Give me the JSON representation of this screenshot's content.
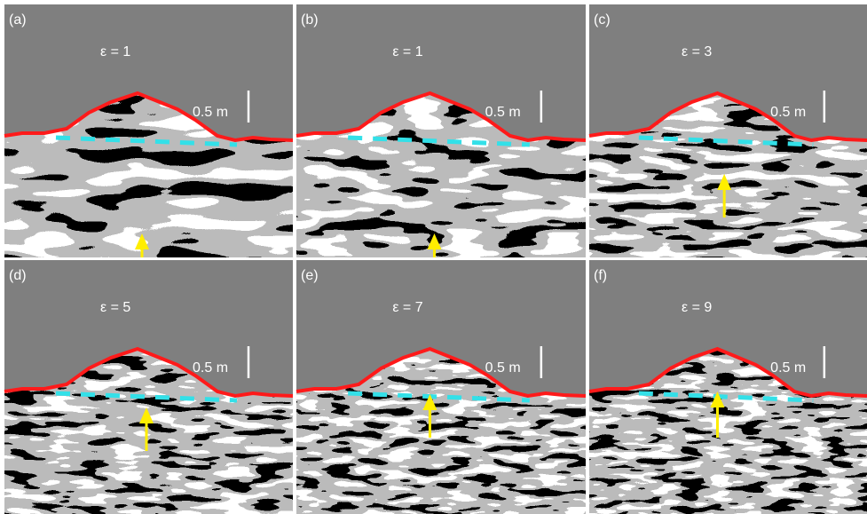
{
  "panels": [
    {
      "label": "(a)",
      "epsilon": "ε = 1",
      "scale": "0.5 m"
    },
    {
      "label": "(b)",
      "epsilon": "ε = 1",
      "scale": "0.5 m"
    },
    {
      "label": "(c)",
      "epsilon": "ε = 3",
      "scale": "0.5 m"
    },
    {
      "label": "(d)",
      "epsilon": "ε = 5",
      "scale": "0.5 m"
    },
    {
      "label": "(e)",
      "epsilon": "ε = 7",
      "scale": "0.5 m"
    },
    {
      "label": "(f)",
      "epsilon": "ε = 9",
      "scale": "0.5 m"
    }
  ]
}
